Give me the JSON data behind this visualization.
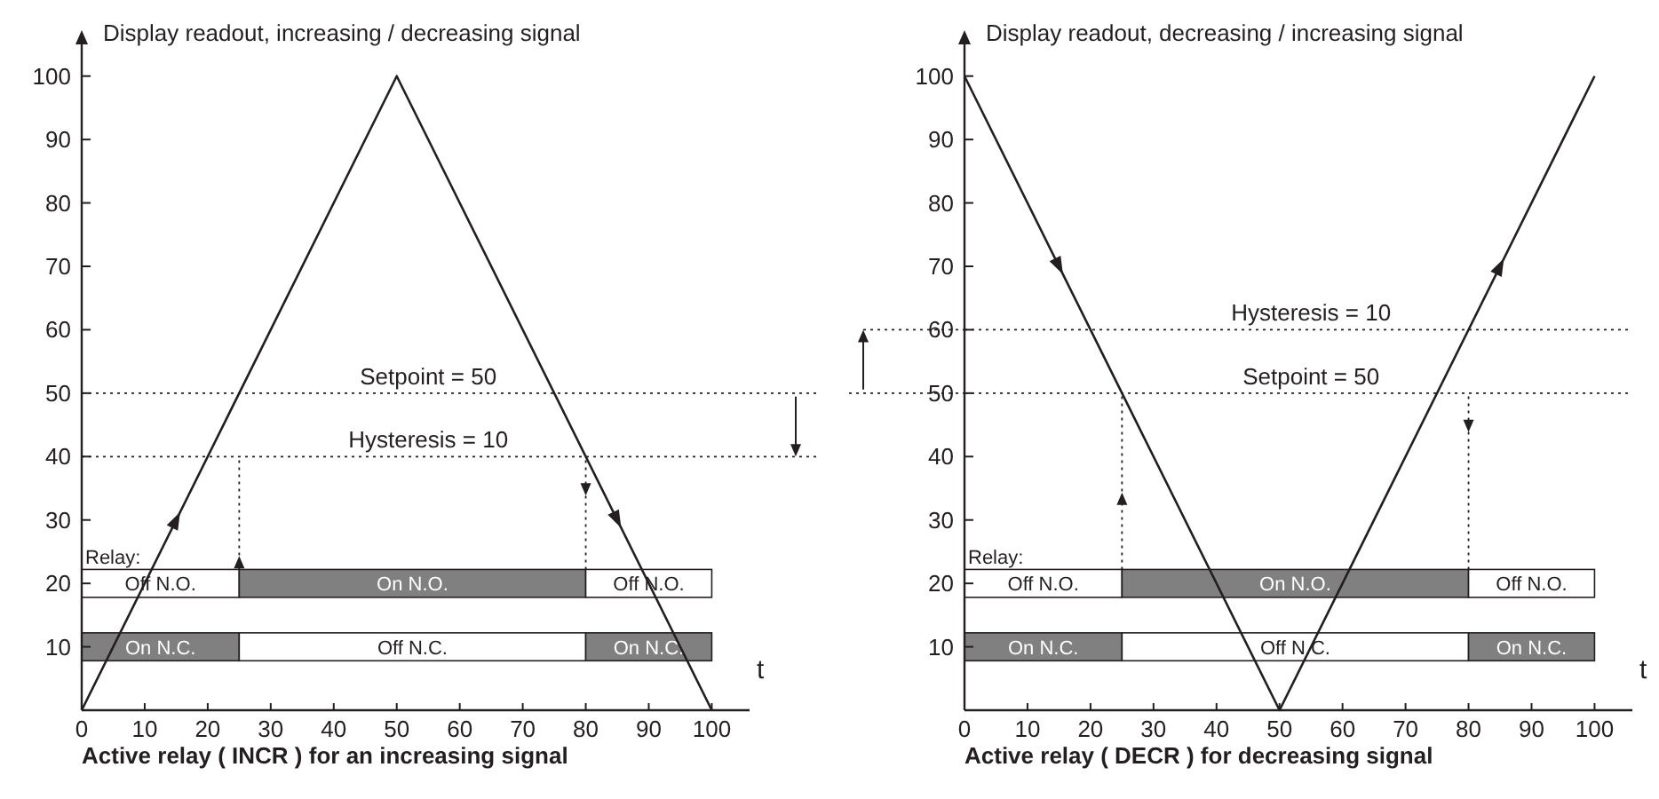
{
  "chart_data": [
    {
      "type": "line",
      "title": "Active relay ( INCR ) for an increasing signal",
      "ylabel": "Display readout, increasing / decreasing signal",
      "xlabel": "t",
      "legend_title": "Relay:",
      "x": [
        0,
        50,
        100
      ],
      "series": [
        {
          "color": "#231f20",
          "values": [
            0,
            100,
            0
          ]
        }
      ],
      "xlim": [
        0,
        106
      ],
      "ylim": [
        0,
        105
      ],
      "xticks": [
        0,
        10,
        20,
        30,
        40,
        50,
        60,
        70,
        80,
        90,
        100
      ],
      "yticks": [
        10,
        20,
        30,
        40,
        50,
        60,
        70,
        80,
        90,
        100
      ],
      "grid": false,
      "marker": "none",
      "line_style": "solid",
      "ref_lines": [
        {
          "axis": "y",
          "value": 50,
          "label": "Setpoint = 50",
          "line_style": "dotted"
        },
        {
          "axis": "y",
          "value": 40,
          "line_style": "dotted"
        },
        {
          "axis": "x",
          "value": 25,
          "line_style": "dotted"
        },
        {
          "axis": "x",
          "value": 80,
          "line_style": "dotted"
        }
      ],
      "annotations": [
        {
          "text": "Hysteresis = 10",
          "x": 55,
          "y": 40
        },
        "Off N.O.",
        "On N.O.",
        "Off N.O.",
        "On N.C.",
        "Off N.C.",
        "On N.C."
      ]
    },
    {
      "type": "line",
      "title": "Active relay ( DECR ) for decreasing signal",
      "ylabel": "Display readout, decreasing / increasing signal",
      "xlabel": "t",
      "legend_title": "Relay:",
      "x": [
        0,
        50,
        100
      ],
      "series": [
        {
          "color": "#231f20",
          "values": [
            100,
            0,
            100
          ]
        }
      ],
      "xlim": [
        0,
        106
      ],
      "ylim": [
        0,
        105
      ],
      "xticks": [
        0,
        10,
        20,
        30,
        40,
        50,
        60,
        70,
        80,
        90,
        100
      ],
      "yticks": [
        10,
        20,
        30,
        40,
        50,
        60,
        70,
        80,
        90,
        100
      ],
      "grid": false,
      "marker": "none",
      "line_style": "solid",
      "ref_lines": [
        {
          "axis": "y",
          "value": 60,
          "line_style": "dotted"
        },
        {
          "axis": "y",
          "value": 50,
          "label": "Setpoint = 50",
          "line_style": "dotted"
        },
        {
          "axis": "x",
          "value": 25,
          "line_style": "dotted"
        },
        {
          "axis": "x",
          "value": 80,
          "line_style": "dotted"
        }
      ],
      "annotations": [
        {
          "text": "Hysteresis = 10",
          "x": 55,
          "y": 60
        },
        "Off N.O.",
        "On N.O.",
        "Off N.O.",
        "On N.C.",
        "Off N.C.",
        "On N.C."
      ]
    }
  ]
}
